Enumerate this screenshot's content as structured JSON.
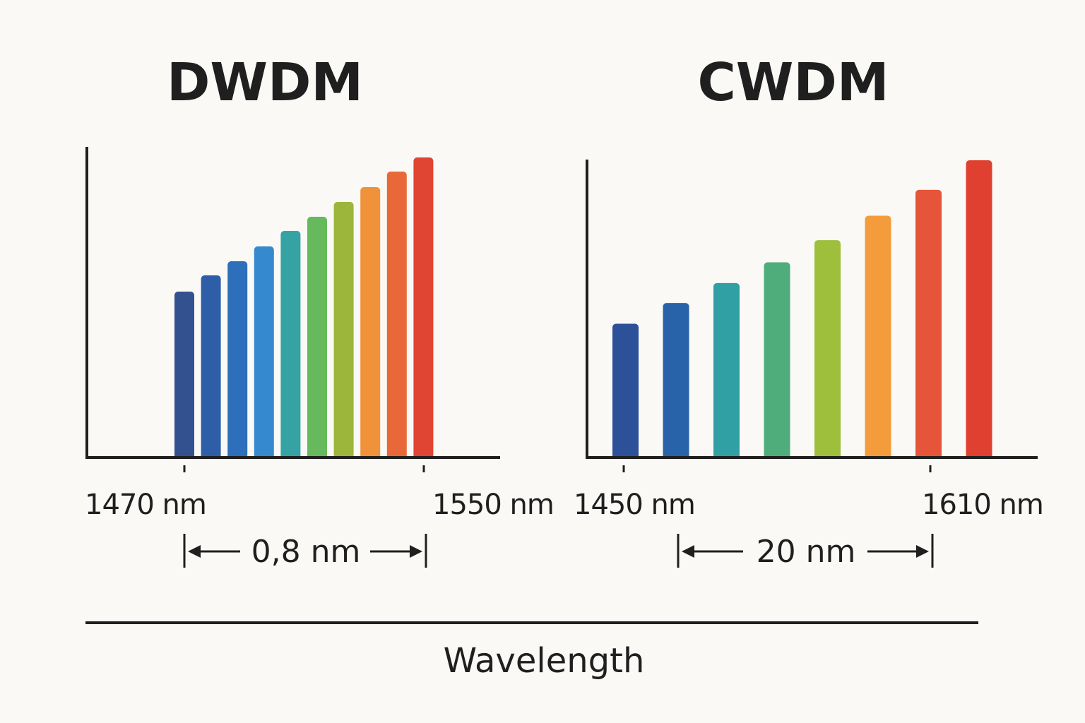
{
  "chart_data": [
    {
      "type": "bar",
      "title": "DWDM",
      "tick_labels": [
        "1470 nm",
        "1550 nm"
      ],
      "spacing_label": "0,8 nm",
      "values": [
        233,
        256,
        276,
        297,
        319,
        339,
        360,
        381,
        403,
        423
      ],
      "colors": [
        "#34518f",
        "#2f5ea8",
        "#2d6fba",
        "#3489cf",
        "#35a3a4",
        "#66b95c",
        "#9bb63a",
        "#f0923a",
        "#e9683a",
        "#e04432"
      ],
      "ylim": [
        0,
        440
      ],
      "grid": false
    },
    {
      "type": "bar",
      "title": "CWDM",
      "tick_labels": [
        "1450 nm",
        "1610 nm"
      ],
      "spacing_label": "20 nm",
      "values": [
        179,
        207,
        234,
        262,
        292,
        325,
        360,
        400
      ],
      "colors": [
        "#2d5198",
        "#2862a8",
        "#30a0a4",
        "#4fad7b",
        "#9dbf3c",
        "#f49c3c",
        "#e6543a",
        "#e0402f"
      ],
      "ylim": [
        0,
        420
      ],
      "grid": false
    }
  ],
  "xlabel": "Wavelength"
}
